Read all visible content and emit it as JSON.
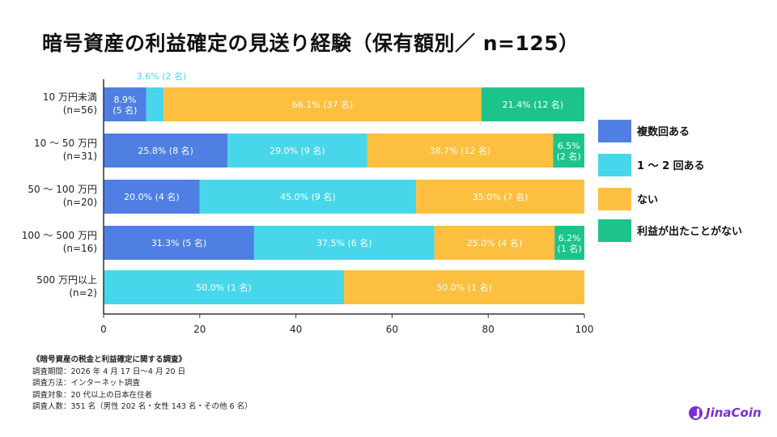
{
  "title": "暗号資産の利益確定の見送り経験（保有額別／ n=125）",
  "chart_data": {
    "type": "bar",
    "orientation": "horizontal",
    "stacked": true,
    "title": "暗号資産の利益確定の見送り経験（保有額別／ n=125）",
    "categories": [
      [
        "10 万円未満",
        "(n=56)"
      ],
      [
        "10 ～ 50 万円",
        "(n=31)"
      ],
      [
        "50 ～ 100 万円",
        "(n=20)"
      ],
      [
        "100 ～ 500 万円",
        "(n=16)"
      ],
      [
        "500 万円以上",
        "(n=2)"
      ]
    ],
    "series": [
      {
        "name": "複数回ある",
        "color": "#4f7fe3",
        "label_color": "#ffffff",
        "values": [
          8.9,
          25.8,
          20.0,
          31.3,
          0
        ],
        "labels": [
          [
            "8.9%",
            "(5 名)"
          ],
          [
            "25.8% (8 名)"
          ],
          [
            "20.0% (4 名)"
          ],
          [
            "31.3% (5 名)"
          ],
          null
        ]
      },
      {
        "name": "1 ～ 2 回ある",
        "color": "#48d7ea",
        "label_color": "#ffffff",
        "values": [
          3.6,
          29.0,
          45.0,
          37.5,
          50.0
        ],
        "labels": [
          [
            "3.6% (2 名)"
          ],
          [
            "29.0% (9 名)"
          ],
          [
            "45.0% (9 名)"
          ],
          [
            "37.5% (6 名)"
          ],
          [
            "50.0% (1 名)"
          ]
        ],
        "label_outside": [
          true,
          false,
          false,
          false,
          false
        ]
      },
      {
        "name": "ない",
        "color": "#fdbf3f",
        "label_color": "#ffffff",
        "values": [
          66.1,
          38.7,
          35.0,
          25.0,
          50.0
        ],
        "labels": [
          [
            "66.1% (37 名)"
          ],
          [
            "38.7% (12 名)"
          ],
          [
            "35.0% (7 名)"
          ],
          [
            "25.0% (4 名)"
          ],
          [
            "50.0% (1 名)"
          ]
        ]
      },
      {
        "name": "利益が出たことがない",
        "color": "#1cc48c",
        "label_color": "#ffffff",
        "values": [
          21.4,
          6.5,
          0,
          6.2,
          0
        ],
        "labels": [
          [
            "21.4% (12 名)"
          ],
          [
            "6.5%",
            "(2 名)"
          ],
          null,
          [
            "6.2%",
            "(1 名)"
          ],
          null
        ]
      }
    ],
    "xlim": [
      0,
      100
    ],
    "xticks": [
      0,
      20,
      40,
      60,
      80,
      100
    ],
    "grid": false,
    "legend_position": "right"
  },
  "notes": {
    "heading": "《暗号資産の税金と利益確定に関する調査》",
    "lines": [
      "調査期間：2026 年 4 月 17 日～4 月 20 日",
      "調査方法：インターネット調査",
      "調査対象：20 代以上の日本在住者",
      "調査人数：351 名（男性 202 名・女性 143 名・その他 6 名）"
    ]
  },
  "logo": {
    "text": "JinaCoin",
    "color": "#7b2fd6"
  }
}
